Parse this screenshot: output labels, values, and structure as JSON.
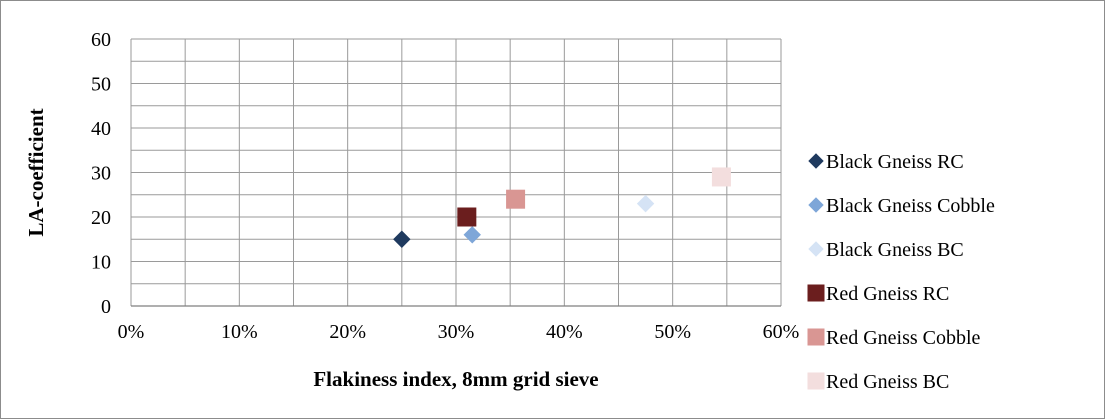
{
  "chart_data": {
    "type": "scatter",
    "title": "",
    "xlabel": "Flakiness index, 8mm grid sieve",
    "ylabel": "LA-coefficient",
    "xlim": [
      0,
      0.6
    ],
    "ylim": [
      0,
      60
    ],
    "x_ticks": [
      "0%",
      "10%",
      "20%",
      "30%",
      "40%",
      "50%",
      "60%"
    ],
    "x_tick_values": [
      0,
      0.1,
      0.2,
      0.3,
      0.4,
      0.5,
      0.6
    ],
    "y_ticks": [
      "0",
      "10",
      "20",
      "30",
      "40",
      "50",
      "60"
    ],
    "y_tick_values": [
      0,
      10,
      20,
      30,
      40,
      50,
      60
    ],
    "grid": true,
    "legend_position": "right",
    "series": [
      {
        "name": "Black Gneiss RC",
        "marker": "diamond",
        "color": "#1f3a5f",
        "points": [
          {
            "x": 0.25,
            "y": 15
          }
        ]
      },
      {
        "name": "Black Gneiss Cobble",
        "marker": "diamond",
        "color": "#7ea6d8",
        "points": [
          {
            "x": 0.315,
            "y": 16
          }
        ]
      },
      {
        "name": "Black Gneiss BC",
        "marker": "diamond",
        "color": "#d5e3f5",
        "points": [
          {
            "x": 0.475,
            "y": 23
          }
        ]
      },
      {
        "name": "Red Gneiss RC",
        "marker": "square",
        "color": "#6b1e1e",
        "points": [
          {
            "x": 0.31,
            "y": 20
          }
        ]
      },
      {
        "name": "Red Gneiss Cobble",
        "marker": "square",
        "color": "#d99693",
        "points": [
          {
            "x": 0.355,
            "y": 24
          }
        ]
      },
      {
        "name": "Red Gneiss BC",
        "marker": "square",
        "color": "#f3dede",
        "points": [
          {
            "x": 0.545,
            "y": 29
          }
        ]
      }
    ]
  }
}
